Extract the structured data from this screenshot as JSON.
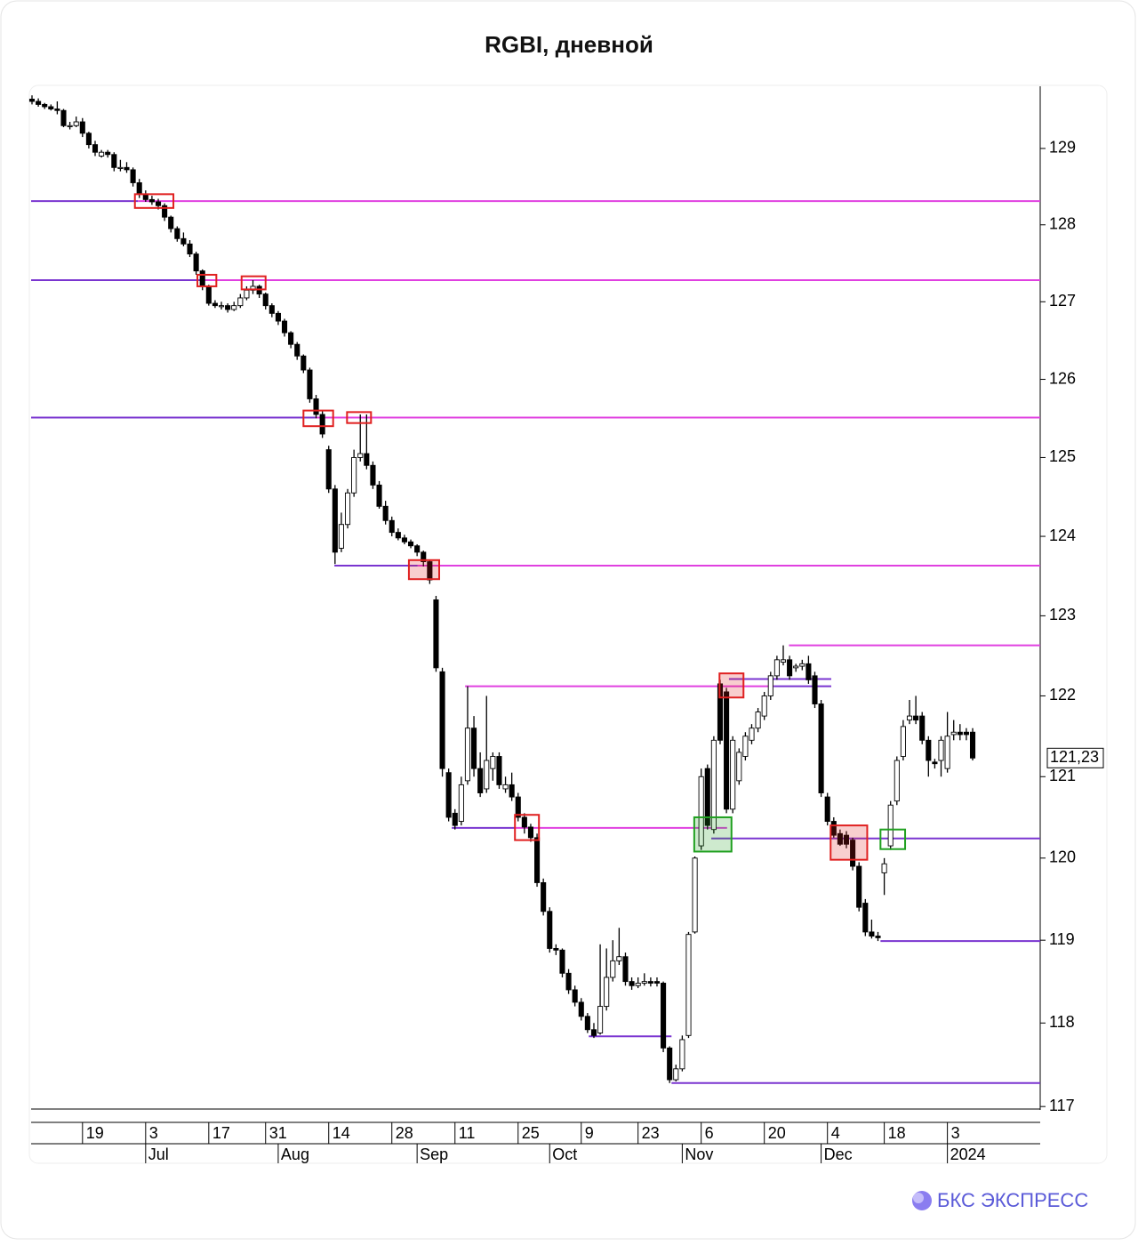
{
  "chart_data": {
    "type": "candlestick",
    "title": "RGBI, дневной",
    "brand": "БКС ЭКСПРЕСС",
    "log_y": true,
    "grid": false,
    "up_color": "#ffffff",
    "down_color": "#000000",
    "ylim": [
      116.97,
      129.82
    ],
    "yticks": [
      117,
      118,
      119,
      120,
      121,
      122,
      123,
      124,
      125,
      126,
      127,
      128,
      129
    ],
    "xlim": [
      -0.14,
      159.7
    ],
    "xticks": [
      {
        "value": 8,
        "label": "19"
      },
      {
        "value": 18,
        "label": "3"
      },
      {
        "value": 28,
        "label": "17"
      },
      {
        "value": 37,
        "label": "31"
      },
      {
        "value": 47,
        "label": "14"
      },
      {
        "value": 57,
        "label": "28"
      },
      {
        "value": 67,
        "label": "11"
      },
      {
        "value": 77,
        "label": "25"
      },
      {
        "value": 87,
        "label": "9"
      },
      {
        "value": 96,
        "label": "23"
      },
      {
        "value": 106,
        "label": "6"
      },
      {
        "value": 116,
        "label": "20"
      },
      {
        "value": 126,
        "label": "4"
      },
      {
        "value": 135,
        "label": "18"
      },
      {
        "value": 145,
        "label": "3"
      }
    ],
    "month_ticks": [
      {
        "value": 18,
        "label": "Jul"
      },
      {
        "value": 39,
        "label": "Aug"
      },
      {
        "value": 61,
        "label": "Sep"
      },
      {
        "value": 82,
        "label": "Oct"
      },
      {
        "value": 103,
        "label": "Nov"
      },
      {
        "value": 125,
        "label": "Dec"
      },
      {
        "value": 145,
        "label": "2024"
      }
    ],
    "last_price": {
      "value": 121.23,
      "label": "121,23"
    },
    "candles": [
      [
        129.65,
        129.7,
        129.58,
        129.62
      ],
      [
        129.62,
        129.66,
        129.55,
        129.58
      ],
      [
        129.58,
        129.6,
        129.52,
        129.55
      ],
      [
        129.55,
        129.58,
        129.5,
        129.52
      ],
      [
        129.52,
        129.62,
        129.45,
        129.5
      ],
      [
        129.5,
        129.52,
        129.28,
        129.3
      ],
      [
        129.3,
        129.35,
        129.25,
        129.3
      ],
      [
        129.3,
        129.42,
        129.28,
        129.35
      ],
      [
        129.35,
        129.4,
        129.15,
        129.2
      ],
      [
        129.2,
        129.22,
        129.0,
        129.05
      ],
      [
        129.05,
        129.1,
        128.9,
        128.95
      ],
      [
        128.9,
        128.98,
        128.88,
        128.95
      ],
      [
        128.95,
        128.98,
        128.88,
        128.92
      ],
      [
        128.92,
        128.95,
        128.7,
        128.75
      ],
      [
        128.75,
        128.85,
        128.7,
        128.75
      ],
      [
        128.75,
        128.82,
        128.68,
        128.72
      ],
      [
        128.72,
        128.75,
        128.5,
        128.55
      ],
      [
        128.55,
        128.6,
        128.35,
        128.4
      ],
      [
        128.4,
        128.45,
        128.3,
        128.33
      ],
      [
        128.33,
        128.38,
        128.26,
        128.3
      ],
      [
        128.3,
        128.34,
        128.2,
        128.25
      ],
      [
        128.25,
        128.28,
        128.05,
        128.1
      ],
      [
        128.1,
        128.12,
        127.9,
        127.95
      ],
      [
        127.95,
        127.98,
        127.78,
        127.82
      ],
      [
        127.82,
        127.9,
        127.72,
        127.75
      ],
      [
        127.75,
        127.8,
        127.58,
        127.62
      ],
      [
        127.62,
        127.65,
        127.35,
        127.4
      ],
      [
        127.4,
        127.42,
        127.15,
        127.2
      ],
      [
        127.2,
        127.22,
        126.95,
        126.98
      ],
      [
        126.98,
        127.02,
        126.92,
        126.95
      ],
      [
        126.95,
        127.0,
        126.9,
        126.95
      ],
      [
        126.95,
        126.98,
        126.86,
        126.9
      ],
      [
        126.9,
        127.0,
        126.88,
        126.95
      ],
      [
        126.95,
        127.1,
        126.92,
        127.05
      ],
      [
        127.05,
        127.2,
        127.02,
        127.15
      ],
      [
        127.15,
        127.28,
        127.1,
        127.2
      ],
      [
        127.2,
        127.22,
        127.05,
        127.1
      ],
      [
        127.1,
        127.12,
        126.9,
        126.95
      ],
      [
        126.95,
        126.98,
        126.8,
        126.85
      ],
      [
        126.85,
        126.88,
        126.7,
        126.75
      ],
      [
        126.75,
        126.78,
        126.55,
        126.6
      ],
      [
        126.6,
        126.62,
        126.4,
        126.45
      ],
      [
        126.45,
        126.48,
        126.25,
        126.3
      ],
      [
        126.3,
        126.32,
        126.08,
        126.12
      ],
      [
        126.12,
        126.15,
        125.7,
        125.75
      ],
      [
        125.75,
        125.8,
        125.5,
        125.55
      ],
      [
        125.55,
        125.6,
        125.25,
        125.3
      ],
      [
        125.1,
        125.15,
        124.55,
        124.6
      ],
      [
        124.6,
        124.65,
        123.65,
        123.8
      ],
      [
        123.85,
        124.3,
        123.8,
        124.15
      ],
      [
        124.15,
        124.6,
        124.1,
        124.55
      ],
      [
        124.55,
        125.1,
        124.5,
        125.0
      ],
      [
        125.0,
        125.55,
        124.95,
        125.05
      ],
      [
        125.05,
        125.55,
        124.85,
        124.9
      ],
      [
        124.9,
        124.95,
        124.6,
        124.65
      ],
      [
        124.65,
        124.7,
        124.35,
        124.38
      ],
      [
        124.38,
        124.45,
        124.15,
        124.2
      ],
      [
        124.2,
        124.25,
        124.0,
        124.05
      ],
      [
        124.05,
        124.1,
        123.95,
        123.98
      ],
      [
        123.98,
        124.02,
        123.9,
        123.93
      ],
      [
        123.93,
        123.96,
        123.85,
        123.88
      ],
      [
        123.88,
        123.9,
        123.75,
        123.8
      ],
      [
        123.8,
        123.82,
        123.62,
        123.68
      ],
      [
        123.68,
        123.7,
        123.4,
        123.45
      ],
      [
        123.2,
        123.25,
        122.3,
        122.35
      ],
      [
        122.3,
        122.35,
        121.0,
        121.1
      ],
      [
        121.05,
        121.1,
        120.45,
        120.5
      ],
      [
        120.55,
        120.6,
        120.35,
        120.4
      ],
      [
        120.45,
        121.0,
        120.4,
        120.9
      ],
      [
        120.95,
        122.12,
        120.9,
        121.6
      ],
      [
        121.6,
        121.75,
        121.0,
        121.1
      ],
      [
        121.1,
        121.3,
        120.75,
        120.8
      ],
      [
        120.85,
        122.0,
        120.8,
        121.2
      ],
      [
        121.1,
        121.3,
        120.95,
        121.25
      ],
      [
        121.25,
        121.3,
        120.85,
        120.9
      ],
      [
        120.85,
        121.0,
        120.8,
        120.9
      ],
      [
        120.9,
        121.05,
        120.7,
        120.75
      ],
      [
        120.75,
        120.8,
        120.45,
        120.5
      ],
      [
        120.5,
        120.55,
        120.3,
        120.38
      ],
      [
        120.38,
        120.42,
        120.2,
        120.25
      ],
      [
        120.25,
        120.3,
        119.65,
        119.7
      ],
      [
        119.7,
        119.75,
        119.3,
        119.35
      ],
      [
        119.35,
        119.4,
        118.85,
        118.9
      ],
      [
        118.9,
        118.95,
        118.82,
        118.88
      ],
      [
        118.88,
        118.9,
        118.55,
        118.6
      ],
      [
        118.6,
        118.65,
        118.35,
        118.4
      ],
      [
        118.4,
        118.45,
        118.2,
        118.25
      ],
      [
        118.25,
        118.3,
        118.03,
        118.08
      ],
      [
        118.08,
        118.12,
        117.88,
        117.92
      ],
      [
        117.92,
        118.0,
        117.82,
        117.85
      ],
      [
        117.88,
        118.95,
        117.86,
        118.2
      ],
      [
        118.2,
        118.9,
        118.15,
        118.55
      ],
      [
        118.55,
        119.0,
        118.5,
        118.75
      ],
      [
        118.75,
        119.15,
        118.7,
        118.8
      ],
      [
        118.8,
        118.85,
        118.45,
        118.5
      ],
      [
        118.5,
        118.55,
        118.4,
        118.45
      ],
      [
        118.45,
        118.55,
        118.42,
        118.48
      ],
      [
        118.48,
        118.6,
        118.45,
        118.5
      ],
      [
        118.5,
        118.55,
        118.44,
        118.48
      ],
      [
        118.5,
        118.55,
        118.44,
        118.48
      ],
      [
        118.48,
        118.5,
        117.65,
        117.7
      ],
      [
        117.7,
        117.72,
        117.28,
        117.32
      ],
      [
        117.32,
        117.5,
        117.3,
        117.45
      ],
      [
        117.45,
        117.85,
        117.42,
        117.8
      ],
      [
        117.85,
        119.1,
        117.82,
        119.07
      ],
      [
        119.1,
        120.02,
        119.08,
        120.0
      ],
      [
        120.15,
        121.1,
        120.1,
        121.0
      ],
      [
        121.1,
        121.15,
        120.35,
        120.4
      ],
      [
        120.35,
        121.5,
        120.3,
        121.45
      ],
      [
        122.15,
        122.2,
        121.4,
        121.45
      ],
      [
        122.05,
        122.1,
        120.55,
        120.6
      ],
      [
        120.6,
        121.5,
        120.55,
        121.45
      ],
      [
        120.95,
        121.35,
        120.9,
        121.3
      ],
      [
        121.25,
        121.55,
        121.2,
        121.5
      ],
      [
        121.45,
        121.65,
        121.4,
        121.6
      ],
      [
        121.6,
        121.85,
        121.55,
        121.8
      ],
      [
        121.75,
        122.05,
        121.7,
        122.0
      ],
      [
        122.0,
        122.3,
        121.95,
        122.25
      ],
      [
        122.25,
        122.5,
        122.2,
        122.45
      ],
      [
        122.42,
        122.63,
        122.38,
        122.45
      ],
      [
        122.45,
        122.5,
        122.2,
        122.25
      ],
      [
        122.35,
        122.4,
        122.3,
        122.37
      ],
      [
        122.37,
        122.45,
        122.32,
        122.4
      ],
      [
        122.4,
        122.5,
        122.15,
        122.2
      ],
      [
        122.25,
        122.3,
        121.85,
        121.9
      ],
      [
        121.9,
        121.95,
        120.75,
        120.8
      ],
      [
        120.75,
        120.8,
        120.4,
        120.45
      ],
      [
        120.45,
        120.5,
        120.25,
        120.28
      ],
      [
        120.3,
        120.35,
        120.15,
        120.17
      ],
      [
        120.28,
        120.33,
        120.12,
        120.17
      ],
      [
        120.22,
        120.25,
        119.85,
        119.9
      ],
      [
        119.9,
        119.95,
        119.35,
        119.4
      ],
      [
        119.45,
        119.5,
        119.05,
        119.1
      ],
      [
        119.1,
        119.25,
        119.02,
        119.05
      ],
      [
        119.05,
        119.1,
        118.99,
        119.03
      ],
      [
        119.82,
        120.0,
        119.55,
        119.93
      ],
      [
        120.15,
        120.7,
        120.1,
        120.65
      ],
      [
        120.7,
        121.25,
        120.65,
        121.2
      ],
      [
        121.25,
        121.7,
        121.2,
        121.62
      ],
      [
        121.7,
        121.95,
        121.65,
        121.75
      ],
      [
        121.75,
        122.0,
        121.65,
        121.7
      ],
      [
        121.75,
        121.8,
        121.4,
        121.45
      ],
      [
        121.45,
        121.5,
        121.0,
        121.2
      ],
      [
        121.18,
        121.22,
        121.1,
        121.16
      ],
      [
        121.2,
        121.5,
        121.0,
        121.45
      ],
      [
        121.1,
        121.8,
        121.05,
        121.5
      ],
      [
        121.52,
        121.7,
        121.45,
        121.55
      ],
      [
        121.55,
        121.65,
        121.45,
        121.52
      ],
      [
        121.55,
        121.6,
        121.45,
        121.52
      ],
      [
        121.55,
        121.6,
        121.2,
        121.23
      ]
    ],
    "levels": [
      {
        "value": 128.31,
        "from": -0.14,
        "to": 16.8,
        "color": "#7a35d0"
      },
      {
        "value": 128.31,
        "from": 16.8,
        "to": 159.7,
        "color": "#e040e0"
      },
      {
        "value": 127.28,
        "from": -0.14,
        "to": 27.3,
        "color": "#7a35d0"
      },
      {
        "value": 127.28,
        "from": 27.3,
        "to": 159.7,
        "color": "#e040e0"
      },
      {
        "value": 125.51,
        "from": -0.14,
        "to": 44.9,
        "color": "#7a35d0"
      },
      {
        "value": 125.51,
        "from": 44.9,
        "to": 159.7,
        "color": "#e040e0"
      },
      {
        "value": 123.63,
        "from": 47.9,
        "to": 61.1,
        "color": "#7a35d0"
      },
      {
        "value": 123.63,
        "from": 61.1,
        "to": 159.7,
        "color": "#e040e0"
      },
      {
        "value": 122.63,
        "from": 119.9,
        "to": 159.7,
        "color": "#e040e0"
      },
      {
        "value": 122.12,
        "from": 68.6,
        "to": 117.5,
        "color": "#e040e0"
      },
      {
        "value": 122.12,
        "from": 117.5,
        "to": 126.6,
        "color": "#7a35d0"
      },
      {
        "value": 122.21,
        "from": 110.4,
        "to": 126.6,
        "color": "#7a35d0"
      },
      {
        "value": 120.37,
        "from": 66.5,
        "to": 76.6,
        "color": "#7a35d0"
      },
      {
        "value": 120.37,
        "from": 76.6,
        "to": 110.1,
        "color": "#e040e0"
      },
      {
        "value": 120.24,
        "from": 107.6,
        "to": 159.7,
        "color": "#7a35d0"
      },
      {
        "value": 118.99,
        "from": 134.4,
        "to": 159.7,
        "color": "#7a35d0"
      },
      {
        "value": 117.84,
        "from": 88.2,
        "to": 101.3,
        "color": "#7a35d0"
      },
      {
        "value": 117.28,
        "from": 101.3,
        "to": 159.7,
        "color": "#7a35d0"
      }
    ],
    "boxes": [
      {
        "x0": 16.3,
        "x1": 22.4,
        "y0": 128.22,
        "y1": 128.4,
        "color": "#e02020",
        "filled": false
      },
      {
        "x0": 26.2,
        "x1": 29.2,
        "y0": 127.2,
        "y1": 127.35,
        "color": "#e02020",
        "filled": false
      },
      {
        "x0": 33.2,
        "x1": 37,
        "y0": 127.16,
        "y1": 127.33,
        "color": "#e02020",
        "filled": false
      },
      {
        "x0": 43,
        "x1": 47.7,
        "y0": 125.4,
        "y1": 125.6,
        "color": "#e02020",
        "filled": false
      },
      {
        "x0": 49.9,
        "x1": 53.7,
        "y0": 125.44,
        "y1": 125.58,
        "color": "#e02020",
        "filled": false
      },
      {
        "x0": 59.7,
        "x1": 64.5,
        "y0": 123.46,
        "y1": 123.7,
        "color": "#e02020",
        "filled": true
      },
      {
        "x0": 76.5,
        "x1": 80.3,
        "y0": 120.22,
        "y1": 120.53,
        "color": "#e02020",
        "filled": false
      },
      {
        "x0": 104.9,
        "x1": 110.8,
        "y0": 120.08,
        "y1": 120.5,
        "color": "#20a020",
        "filled": true
      },
      {
        "x0": 108.9,
        "x1": 112.7,
        "y0": 121.98,
        "y1": 122.28,
        "color": "#e02020",
        "filled": true
      },
      {
        "x0": 126.5,
        "x1": 132.3,
        "y0": 119.98,
        "y1": 120.4,
        "color": "#e02020",
        "filled": true
      },
      {
        "x0": 134.4,
        "x1": 138.3,
        "y0": 120.11,
        "y1": 120.35,
        "color": "#20a020",
        "filled": false
      }
    ]
  }
}
